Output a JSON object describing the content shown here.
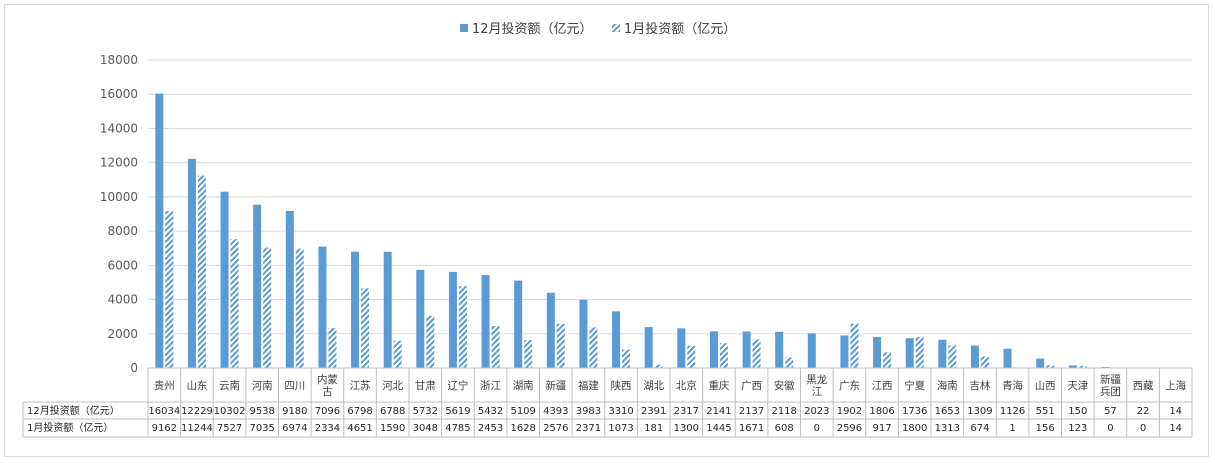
{
  "chart_data": {
    "type": "bar",
    "categories": [
      "贵州",
      "山东",
      "云南",
      "河南",
      "四川",
      "内蒙古",
      "江苏",
      "河北",
      "甘肃",
      "辽宁",
      "浙江",
      "湖南",
      "新疆",
      "福建",
      "陕西",
      "湖北",
      "北京",
      "重庆",
      "广西",
      "安徽",
      "黑龙江",
      "广东",
      "江西",
      "宁夏",
      "海南",
      "吉林",
      "青海",
      "山西",
      "天津",
      "新疆兵团",
      "西藏",
      "上海"
    ],
    "series": [
      {
        "name": "12月投资额（亿元）",
        "values": [
          16034,
          12229,
          10302,
          9538,
          9180,
          7096,
          6798,
          6788,
          5732,
          5619,
          5432,
          5109,
          4393,
          3983,
          3310,
          2391,
          2317,
          2141,
          2137,
          2118,
          2023,
          1902,
          1806,
          1736,
          1653,
          1309,
          1126,
          551,
          150,
          57,
          22,
          14
        ],
        "color": "#5b9bd5",
        "pattern": "solid"
      },
      {
        "name": "1月投资额（亿元）",
        "values": [
          9162,
          11244,
          7527,
          7035,
          6974,
          2334,
          4651,
          1590,
          3048,
          4785,
          2453,
          1628,
          2576,
          2371,
          1073,
          181,
          1300,
          1445,
          1671,
          608,
          0,
          2596,
          917,
          1800,
          1313,
          674,
          1,
          156,
          123,
          0,
          0,
          14
        ],
        "color": "#5b9bd5",
        "pattern": "hatch"
      }
    ],
    "title": "",
    "xlabel": "",
    "ylabel": "",
    "ylim": [
      0,
      18000
    ],
    "yticks": [
      0,
      2000,
      4000,
      6000,
      8000,
      10000,
      12000,
      14000,
      16000,
      18000
    ],
    "grid": true,
    "legend": "top-center",
    "data_table": true
  }
}
